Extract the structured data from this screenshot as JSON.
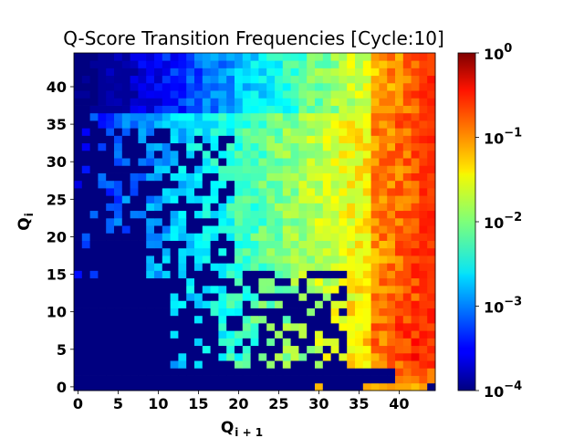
{
  "chart_data": {
    "type": "heatmap",
    "title": "Q-Score Transition Frequencies [Cycle:10]",
    "xlabel": "Q",
    "xlabel_sub": "i + 1",
    "ylabel": "Q",
    "ylabel_sub": "i",
    "x_range": [
      -0.5,
      44.5
    ],
    "y_range": [
      -0.5,
      44.5
    ],
    "grid_size": 45,
    "x_ticks": [
      0,
      5,
      10,
      15,
      20,
      25,
      30,
      35,
      40
    ],
    "y_ticks": [
      0,
      5,
      10,
      15,
      20,
      25,
      30,
      35,
      40
    ],
    "colorbar": {
      "scale": "log",
      "colormap": "jet",
      "min": 0.0001,
      "max": 1,
      "ticks": [
        {
          "base": "10",
          "exp": "0",
          "value": 1
        },
        {
          "base": "10",
          "exp": "−1",
          "value": 0.1
        },
        {
          "base": "10",
          "exp": "−2",
          "value": 0.01
        },
        {
          "base": "10",
          "exp": "−3",
          "value": 0.001
        },
        {
          "base": "10",
          "exp": "−4",
          "value": 0.0001
        }
      ]
    },
    "description_model": {
      "background_value": 0.0001,
      "peak_column_value": 0.3,
      "peak_column_q": 43,
      "bottom_rows_empty": [
        0,
        1,
        2
      ],
      "row0_nonzero_columns": [
        30,
        36,
        37,
        38,
        39,
        40,
        41,
        42,
        43
      ]
    }
  }
}
